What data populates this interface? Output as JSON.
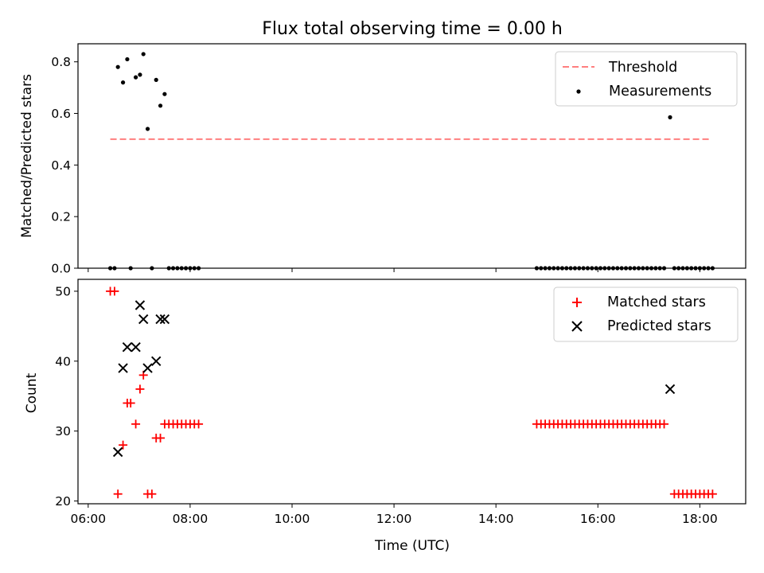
{
  "chart_data": [
    {
      "type": "scatter",
      "title": "Flux total observing time = 0.00 h",
      "xlabel": "",
      "ylabel": "Matched/Predicted stars",
      "ylim": [
        0,
        0.87
      ],
      "yticks": [
        "0.0",
        "0.2",
        "0.4",
        "0.6",
        "0.8"
      ],
      "ytick_values": [
        0,
        0.2,
        0.4,
        0.6,
        0.8
      ],
      "xlim_hours": [
        5.8,
        18.9
      ],
      "legend_position": "upper right",
      "grid": false,
      "colors": {
        "threshold": "#ff7f7f",
        "measurements": "#000000"
      },
      "threshold": {
        "name": "Threshold",
        "value": 0.5,
        "x_from": "06:26",
        "x_to": "18:12"
      },
      "series": [
        {
          "name": "Measurements",
          "marker": "dot",
          "points": [
            [
              "06:26",
              0.0
            ],
            [
              "06:31",
              0.0
            ],
            [
              "06:35",
              0.78
            ],
            [
              "06:41",
              0.72
            ],
            [
              "06:46",
              0.81
            ],
            [
              "06:50",
              0.0
            ],
            [
              "06:56",
              0.74
            ],
            [
              "07:01",
              0.75
            ],
            [
              "07:05",
              0.83
            ],
            [
              "07:10",
              0.54
            ],
            [
              "07:15",
              0.0
            ],
            [
              "07:20",
              0.73
            ],
            [
              "07:25",
              0.63
            ],
            [
              "07:30",
              0.675
            ],
            [
              "07:35",
              0.0
            ],
            [
              "07:40",
              0.0
            ],
            [
              "07:45",
              0.0
            ],
            [
              "07:50",
              0.0
            ],
            [
              "07:55",
              0.0
            ],
            [
              "08:00",
              0.0
            ],
            [
              "08:05",
              0.0
            ],
            [
              "08:10",
              0.0
            ],
            [
              "14:48",
              0.0
            ],
            [
              "14:53",
              0.0
            ],
            [
              "14:58",
              0.0
            ],
            [
              "15:03",
              0.0
            ],
            [
              "15:08",
              0.0
            ],
            [
              "15:13",
              0.0
            ],
            [
              "15:18",
              0.0
            ],
            [
              "15:23",
              0.0
            ],
            [
              "15:28",
              0.0
            ],
            [
              "15:33",
              0.0
            ],
            [
              "15:38",
              0.0
            ],
            [
              "15:43",
              0.0
            ],
            [
              "15:48",
              0.0
            ],
            [
              "15:53",
              0.0
            ],
            [
              "15:58",
              0.0
            ],
            [
              "16:03",
              0.0
            ],
            [
              "16:08",
              0.0
            ],
            [
              "16:13",
              0.0
            ],
            [
              "16:18",
              0.0
            ],
            [
              "16:23",
              0.0
            ],
            [
              "16:28",
              0.0
            ],
            [
              "16:33",
              0.0
            ],
            [
              "16:38",
              0.0
            ],
            [
              "16:43",
              0.0
            ],
            [
              "16:48",
              0.0
            ],
            [
              "16:53",
              0.0
            ],
            [
              "16:58",
              0.0
            ],
            [
              "17:03",
              0.0
            ],
            [
              "17:08",
              0.0
            ],
            [
              "17:13",
              0.0
            ],
            [
              "17:18",
              0.0
            ],
            [
              "17:25",
              0.585
            ],
            [
              "17:30",
              0.0
            ],
            [
              "17:35",
              0.0
            ],
            [
              "17:40",
              0.0
            ],
            [
              "17:45",
              0.0
            ],
            [
              "17:50",
              0.0
            ],
            [
              "17:55",
              0.0
            ],
            [
              "18:00",
              0.0
            ],
            [
              "18:05",
              0.0
            ],
            [
              "18:10",
              0.0
            ],
            [
              "18:15",
              0.0
            ]
          ]
        }
      ]
    },
    {
      "type": "scatter",
      "title": "",
      "xlabel": "Time (UTC)",
      "ylabel": "Count",
      "ylim": [
        19.6,
        51.7
      ],
      "yticks": [
        "20",
        "30",
        "40",
        "50"
      ],
      "ytick_values": [
        20,
        30,
        40,
        50
      ],
      "xlim_hours": [
        5.8,
        18.9
      ],
      "xticks": [
        "06:00",
        "08:00",
        "10:00",
        "12:00",
        "14:00",
        "16:00",
        "18:00"
      ],
      "xtick_hours": [
        6,
        8,
        10,
        12,
        14,
        16,
        18
      ],
      "legend_position": "upper right",
      "grid": false,
      "colors": {
        "matched": "#ff0000",
        "predicted": "#000000"
      },
      "series": [
        {
          "name": "Matched stars",
          "marker": "plus",
          "points": [
            [
              "06:26",
              50
            ],
            [
              "06:31",
              50
            ],
            [
              "06:35",
              21
            ],
            [
              "06:41",
              28
            ],
            [
              "06:46",
              34
            ],
            [
              "06:50",
              34
            ],
            [
              "06:56",
              31
            ],
            [
              "07:01",
              36
            ],
            [
              "07:05",
              38
            ],
            [
              "07:10",
              21
            ],
            [
              "07:15",
              21
            ],
            [
              "07:20",
              29
            ],
            [
              "07:25",
              29
            ],
            [
              "07:30",
              31
            ],
            [
              "07:35",
              31
            ],
            [
              "07:40",
              31
            ],
            [
              "07:45",
              31
            ],
            [
              "07:50",
              31
            ],
            [
              "07:55",
              31
            ],
            [
              "08:00",
              31
            ],
            [
              "08:05",
              31
            ],
            [
              "08:10",
              31
            ],
            [
              "14:48",
              31
            ],
            [
              "14:53",
              31
            ],
            [
              "14:58",
              31
            ],
            [
              "15:03",
              31
            ],
            [
              "15:08",
              31
            ],
            [
              "15:13",
              31
            ],
            [
              "15:18",
              31
            ],
            [
              "15:23",
              31
            ],
            [
              "15:28",
              31
            ],
            [
              "15:33",
              31
            ],
            [
              "15:38",
              31
            ],
            [
              "15:43",
              31
            ],
            [
              "15:48",
              31
            ],
            [
              "15:53",
              31
            ],
            [
              "15:58",
              31
            ],
            [
              "16:03",
              31
            ],
            [
              "16:08",
              31
            ],
            [
              "16:13",
              31
            ],
            [
              "16:18",
              31
            ],
            [
              "16:23",
              31
            ],
            [
              "16:28",
              31
            ],
            [
              "16:33",
              31
            ],
            [
              "16:38",
              31
            ],
            [
              "16:43",
              31
            ],
            [
              "16:48",
              31
            ],
            [
              "16:53",
              31
            ],
            [
              "16:58",
              31
            ],
            [
              "17:03",
              31
            ],
            [
              "17:08",
              31
            ],
            [
              "17:13",
              31
            ],
            [
              "17:18",
              31
            ],
            [
              "17:30",
              21
            ],
            [
              "17:35",
              21
            ],
            [
              "17:40",
              21
            ],
            [
              "17:45",
              21
            ],
            [
              "17:50",
              21
            ],
            [
              "17:55",
              21
            ],
            [
              "18:00",
              21
            ],
            [
              "18:05",
              21
            ],
            [
              "18:10",
              21
            ],
            [
              "18:15",
              21
            ]
          ]
        },
        {
          "name": "Predicted stars",
          "marker": "x",
          "points": [
            [
              "06:35",
              27
            ],
            [
              "06:41",
              39
            ],
            [
              "06:46",
              42
            ],
            [
              "06:56",
              42
            ],
            [
              "07:01",
              48
            ],
            [
              "07:05",
              46
            ],
            [
              "07:10",
              39
            ],
            [
              "07:20",
              40
            ],
            [
              "07:25",
              46
            ],
            [
              "07:30",
              46
            ],
            [
              "17:25",
              36
            ]
          ]
        }
      ]
    }
  ]
}
